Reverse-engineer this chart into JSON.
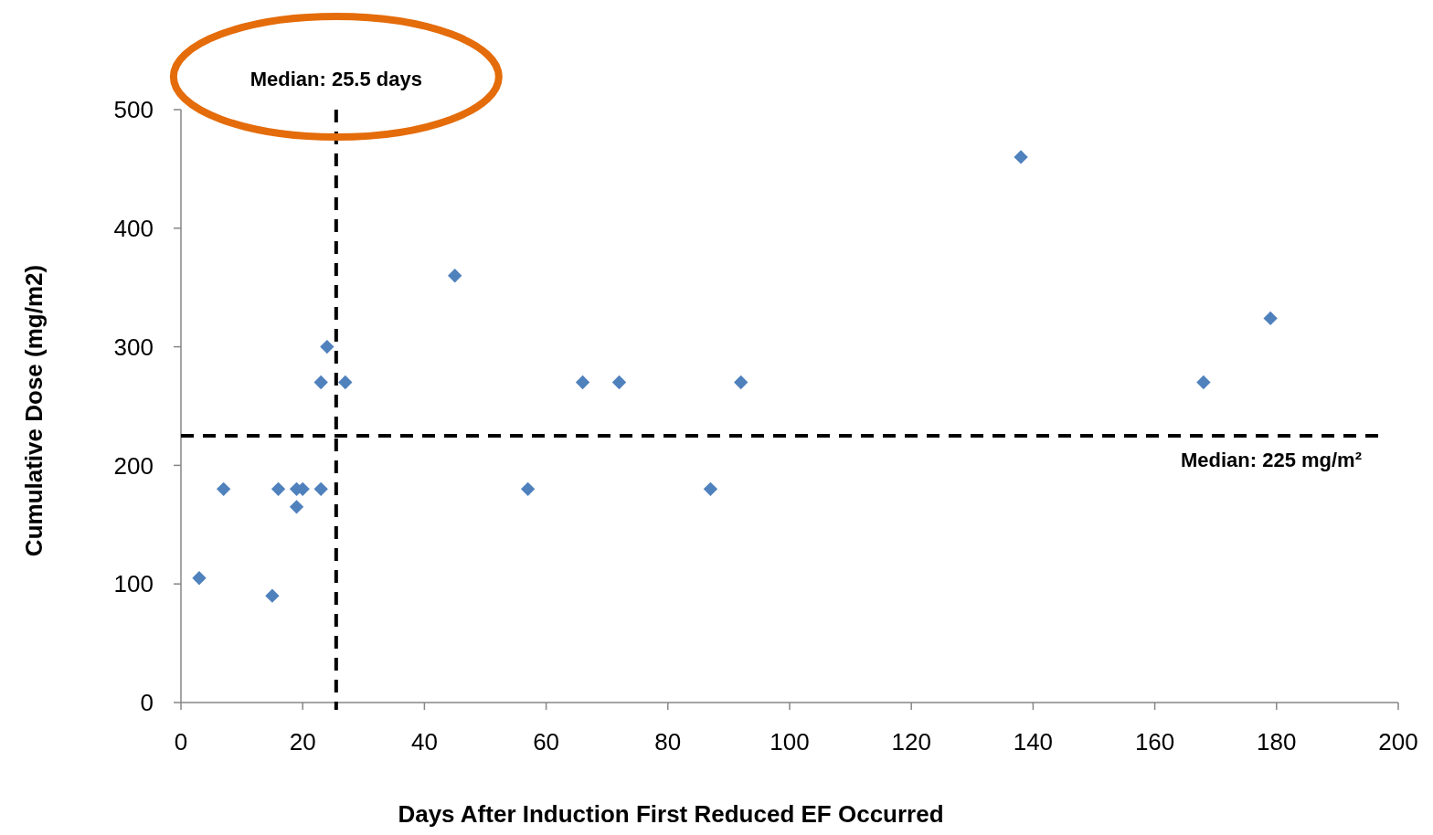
{
  "chart_data": {
    "type": "scatter",
    "xlabel": "Days After Induction First Reduced EF Occurred",
    "ylabel": "Cumulative Dose (mg/m2)",
    "x": [
      3,
      7,
      15,
      16,
      19,
      20,
      19,
      23,
      23,
      24,
      27,
      45,
      57,
      66,
      72,
      87,
      92,
      138,
      168,
      179
    ],
    "series": [
      {
        "color": "#4f81bd",
        "values": [
          105,
          180,
          90,
          180,
          180,
          180,
          165,
          180,
          270,
          300,
          270,
          360,
          180,
          270,
          270,
          180,
          270,
          460,
          270,
          324
        ]
      }
    ],
    "xlim": [
      0,
      200
    ],
    "xticks": [
      0,
      20,
      40,
      60,
      80,
      100,
      120,
      140,
      160,
      180,
      200
    ],
    "ylim": [
      0,
      500
    ],
    "yticks": [
      0,
      100,
      200,
      300,
      400,
      500
    ],
    "marker": "diamond",
    "grid": false,
    "ref_lines": [
      {
        "axis": "x",
        "value": 25.5,
        "label": "Median: 25.5 days",
        "color": "#000000",
        "line_style": "dashed"
      },
      {
        "axis": "y",
        "value": 225,
        "label": "Median: 225 mg/m²",
        "color": "#000000",
        "line_style": "dashed"
      }
    ]
  }
}
